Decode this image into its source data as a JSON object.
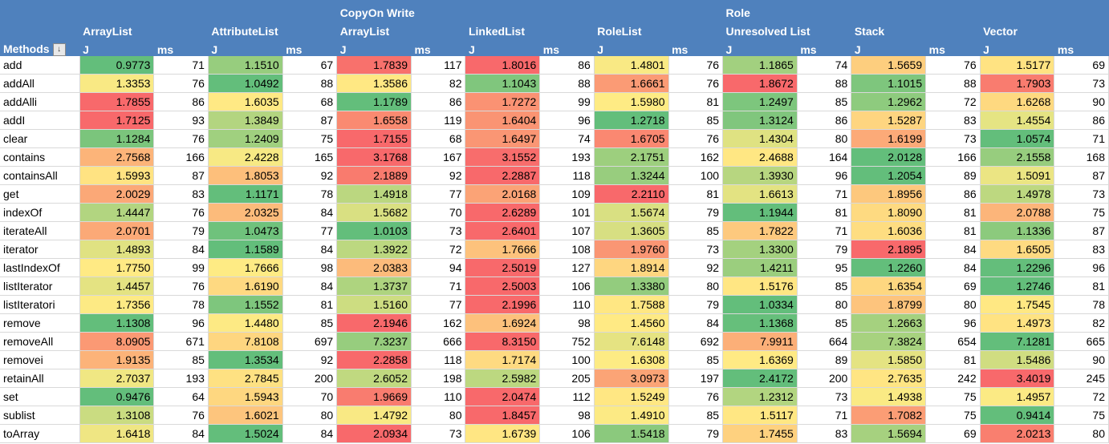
{
  "header": {
    "methods_label": "Methods",
    "filter_icon": "sort-filter-icon",
    "j_label": "J",
    "ms_label": "ms",
    "columns": [
      {
        "line1": "",
        "line2": "ArrayList"
      },
      {
        "line1": "",
        "line2": "AttributeList"
      },
      {
        "line1": "CopyOn Write",
        "line2": "ArrayList"
      },
      {
        "line1": "",
        "line2": "LinkedList"
      },
      {
        "line1": "",
        "line2": "RoleList"
      },
      {
        "line1": "Role",
        "line2": "Unresolved List"
      },
      {
        "line1": "",
        "line2": "Stack"
      },
      {
        "line1": "",
        "line2": "Vector"
      }
    ]
  },
  "colors": {
    "header_bg": "#4f81bd",
    "scale_low": "#63be7b",
    "scale_mid": "#ffeb84",
    "scale_high": "#f8696b"
  },
  "rows": [
    {
      "method": "add",
      "cells": [
        [
          "0.9773",
          "71"
        ],
        [
          "1.1510",
          "67"
        ],
        [
          "1.7839",
          "117"
        ],
        [
          "1.8016",
          "86"
        ],
        [
          "1.4801",
          "76"
        ],
        [
          "1.1865",
          "74"
        ],
        [
          "1.5659",
          "76"
        ],
        [
          "1.5177",
          "69"
        ]
      ]
    },
    {
      "method": "addAll",
      "cells": [
        [
          "1.3353",
          "76"
        ],
        [
          "1.0492",
          "88"
        ],
        [
          "1.3586",
          "82"
        ],
        [
          "1.1043",
          "88"
        ],
        [
          "1.6661",
          "76"
        ],
        [
          "1.8672",
          "88"
        ],
        [
          "1.1015",
          "88"
        ],
        [
          "1.7903",
          "73"
        ]
      ]
    },
    {
      "method": "addAlli",
      "cells": [
        [
          "1.7855",
          "86"
        ],
        [
          "1.6035",
          "68"
        ],
        [
          "1.1789",
          "86"
        ],
        [
          "1.7272",
          "99"
        ],
        [
          "1.5980",
          "81"
        ],
        [
          "1.2497",
          "85"
        ],
        [
          "1.2962",
          "72"
        ],
        [
          "1.6268",
          "90"
        ]
      ]
    },
    {
      "method": "addI",
      "cells": [
        [
          "1.7125",
          "93"
        ],
        [
          "1.3849",
          "87"
        ],
        [
          "1.6558",
          "119"
        ],
        [
          "1.6404",
          "96"
        ],
        [
          "1.2718",
          "85"
        ],
        [
          "1.3124",
          "86"
        ],
        [
          "1.5287",
          "83"
        ],
        [
          "1.4554",
          "86"
        ]
      ]
    },
    {
      "method": "clear",
      "cells": [
        [
          "1.1284",
          "76"
        ],
        [
          "1.2409",
          "75"
        ],
        [
          "1.7155",
          "68"
        ],
        [
          "1.6497",
          "74"
        ],
        [
          "1.6705",
          "76"
        ],
        [
          "1.4304",
          "80"
        ],
        [
          "1.6199",
          "73"
        ],
        [
          "1.0574",
          "71"
        ]
      ]
    },
    {
      "method": "contains",
      "cells": [
        [
          "2.7568",
          "166"
        ],
        [
          "2.4228",
          "165"
        ],
        [
          "3.1768",
          "167"
        ],
        [
          "3.1552",
          "193"
        ],
        [
          "2.1751",
          "162"
        ],
        [
          "2.4688",
          "164"
        ],
        [
          "2.0128",
          "166"
        ],
        [
          "2.1558",
          "168"
        ]
      ]
    },
    {
      "method": "containsAll",
      "cells": [
        [
          "1.5993",
          "87"
        ],
        [
          "1.8053",
          "92"
        ],
        [
          "2.1889",
          "92"
        ],
        [
          "2.2887",
          "118"
        ],
        [
          "1.3244",
          "100"
        ],
        [
          "1.3930",
          "96"
        ],
        [
          "1.2054",
          "89"
        ],
        [
          "1.5091",
          "87"
        ]
      ]
    },
    {
      "method": "get",
      "cells": [
        [
          "2.0029",
          "83"
        ],
        [
          "1.1171",
          "78"
        ],
        [
          "1.4918",
          "77"
        ],
        [
          "2.0168",
          "109"
        ],
        [
          "2.2110",
          "81"
        ],
        [
          "1.6613",
          "71"
        ],
        [
          "1.8956",
          "86"
        ],
        [
          "1.4978",
          "73"
        ]
      ]
    },
    {
      "method": "indexOf",
      "cells": [
        [
          "1.4447",
          "76"
        ],
        [
          "2.0325",
          "84"
        ],
        [
          "1.5682",
          "70"
        ],
        [
          "2.6289",
          "101"
        ],
        [
          "1.5674",
          "79"
        ],
        [
          "1.1944",
          "81"
        ],
        [
          "1.8090",
          "81"
        ],
        [
          "2.0788",
          "75"
        ]
      ]
    },
    {
      "method": "iterateAll",
      "cells": [
        [
          "2.0701",
          "79"
        ],
        [
          "1.0473",
          "77"
        ],
        [
          "1.0103",
          "73"
        ],
        [
          "2.6401",
          "107"
        ],
        [
          "1.3605",
          "85"
        ],
        [
          "1.7822",
          "71"
        ],
        [
          "1.6036",
          "81"
        ],
        [
          "1.1336",
          "87"
        ]
      ]
    },
    {
      "method": "iterator",
      "cells": [
        [
          "1.4893",
          "84"
        ],
        [
          "1.1589",
          "84"
        ],
        [
          "1.3922",
          "72"
        ],
        [
          "1.7666",
          "108"
        ],
        [
          "1.9760",
          "73"
        ],
        [
          "1.3300",
          "79"
        ],
        [
          "2.1895",
          "84"
        ],
        [
          "1.6505",
          "83"
        ]
      ]
    },
    {
      "method": "lastIndexOf",
      "cells": [
        [
          "1.7750",
          "99"
        ],
        [
          "1.7666",
          "98"
        ],
        [
          "2.0383",
          "94"
        ],
        [
          "2.5019",
          "127"
        ],
        [
          "1.8914",
          "92"
        ],
        [
          "1.4211",
          "95"
        ],
        [
          "1.2260",
          "84"
        ],
        [
          "1.2296",
          "96"
        ]
      ]
    },
    {
      "method": "listIterator",
      "cells": [
        [
          "1.4457",
          "76"
        ],
        [
          "1.6190",
          "84"
        ],
        [
          "1.3737",
          "71"
        ],
        [
          "2.5003",
          "106"
        ],
        [
          "1.3380",
          "80"
        ],
        [
          "1.5176",
          "85"
        ],
        [
          "1.6354",
          "69"
        ],
        [
          "1.2746",
          "81"
        ]
      ]
    },
    {
      "method": "listIteratori",
      "cells": [
        [
          "1.7356",
          "78"
        ],
        [
          "1.1552",
          "81"
        ],
        [
          "1.5160",
          "77"
        ],
        [
          "2.1996",
          "110"
        ],
        [
          "1.7588",
          "79"
        ],
        [
          "1.0334",
          "80"
        ],
        [
          "1.8799",
          "80"
        ],
        [
          "1.7545",
          "78"
        ]
      ]
    },
    {
      "method": "remove",
      "cells": [
        [
          "1.1308",
          "96"
        ],
        [
          "1.4480",
          "85"
        ],
        [
          "2.1946",
          "162"
        ],
        [
          "1.6924",
          "98"
        ],
        [
          "1.4560",
          "84"
        ],
        [
          "1.1368",
          "85"
        ],
        [
          "1.2663",
          "96"
        ],
        [
          "1.4973",
          "82"
        ]
      ]
    },
    {
      "method": "removeAll",
      "cells": [
        [
          "8.0905",
          "671"
        ],
        [
          "7.8108",
          "697"
        ],
        [
          "7.3237",
          "666"
        ],
        [
          "8.3150",
          "752"
        ],
        [
          "7.6148",
          "692"
        ],
        [
          "7.9911",
          "664"
        ],
        [
          "7.3824",
          "654"
        ],
        [
          "7.1281",
          "665"
        ]
      ]
    },
    {
      "method": "removei",
      "cells": [
        [
          "1.9135",
          "85"
        ],
        [
          "1.3534",
          "92"
        ],
        [
          "2.2858",
          "118"
        ],
        [
          "1.7174",
          "100"
        ],
        [
          "1.6308",
          "85"
        ],
        [
          "1.6369",
          "89"
        ],
        [
          "1.5850",
          "81"
        ],
        [
          "1.5486",
          "90"
        ]
      ]
    },
    {
      "method": "retainAll",
      "cells": [
        [
          "2.7037",
          "193"
        ],
        [
          "2.7845",
          "200"
        ],
        [
          "2.6052",
          "198"
        ],
        [
          "2.5982",
          "205"
        ],
        [
          "3.0973",
          "197"
        ],
        [
          "2.4172",
          "200"
        ],
        [
          "2.7635",
          "242"
        ],
        [
          "3.4019",
          "245"
        ]
      ]
    },
    {
      "method": "set",
      "cells": [
        [
          "0.9476",
          "64"
        ],
        [
          "1.5943",
          "70"
        ],
        [
          "1.9669",
          "110"
        ],
        [
          "2.0474",
          "112"
        ],
        [
          "1.5249",
          "76"
        ],
        [
          "1.2312",
          "73"
        ],
        [
          "1.4938",
          "75"
        ],
        [
          "1.4957",
          "72"
        ]
      ]
    },
    {
      "method": "sublist",
      "cells": [
        [
          "1.3108",
          "76"
        ],
        [
          "1.6021",
          "80"
        ],
        [
          "1.4792",
          "80"
        ],
        [
          "1.8457",
          "98"
        ],
        [
          "1.4910",
          "85"
        ],
        [
          "1.5117",
          "71"
        ],
        [
          "1.7082",
          "75"
        ],
        [
          "0.9414",
          "75"
        ]
      ]
    },
    {
      "method": "toArray",
      "cells": [
        [
          "1.6418",
          "84"
        ],
        [
          "1.5024",
          "84"
        ],
        [
          "2.0934",
          "73"
        ],
        [
          "1.6739",
          "106"
        ],
        [
          "1.5418",
          "79"
        ],
        [
          "1.7455",
          "83"
        ],
        [
          "1.5694",
          "69"
        ],
        [
          "2.0213",
          "80"
        ]
      ]
    }
  ]
}
